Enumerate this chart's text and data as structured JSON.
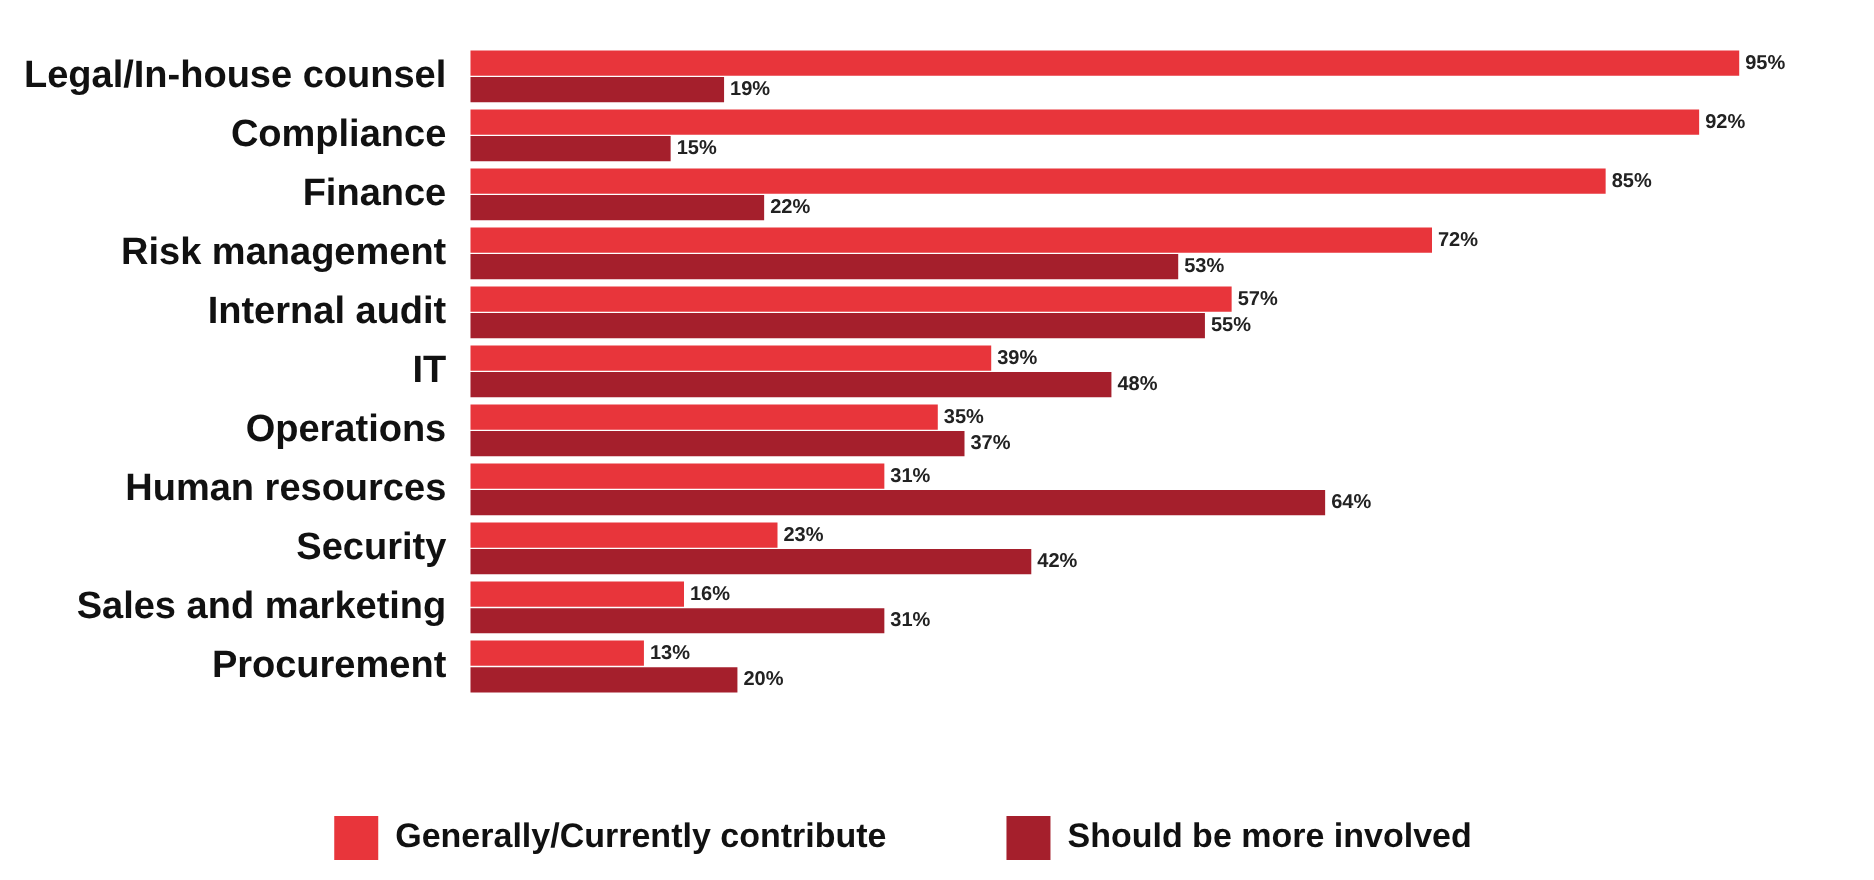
{
  "chart_data": {
    "type": "bar",
    "orientation": "horizontal",
    "categories": [
      "Legal/In-house counsel",
      "Compliance",
      "Finance",
      "Risk management",
      "Internal audit",
      "IT",
      "Operations",
      "Human resources",
      "Security",
      "Sales and marketing",
      "Procurement"
    ],
    "series": [
      {
        "name": "Generally/Currently contribute",
        "color": "#e8353b",
        "values": [
          95,
          92,
          85,
          72,
          57,
          39,
          35,
          31,
          23,
          16,
          13
        ],
        "value_labels": [
          "95%",
          "92%",
          "85%",
          "72%",
          "57%",
          "39%",
          "35%",
          "31%",
          "23%",
          "16%",
          "13%"
        ]
      },
      {
        "name": "Should be more involved",
        "color": "#a51f2c",
        "values": [
          19,
          15,
          22,
          53,
          55,
          48,
          37,
          64,
          42,
          31,
          20
        ],
        "value_labels": [
          "19%",
          "15%",
          "22%",
          "53%",
          "55%",
          "48%",
          "37%",
          "64%",
          "42%",
          "31%",
          "20%"
        ]
      }
    ],
    "legend": "bottom",
    "grid": false,
    "tick_labels": "y"
  }
}
